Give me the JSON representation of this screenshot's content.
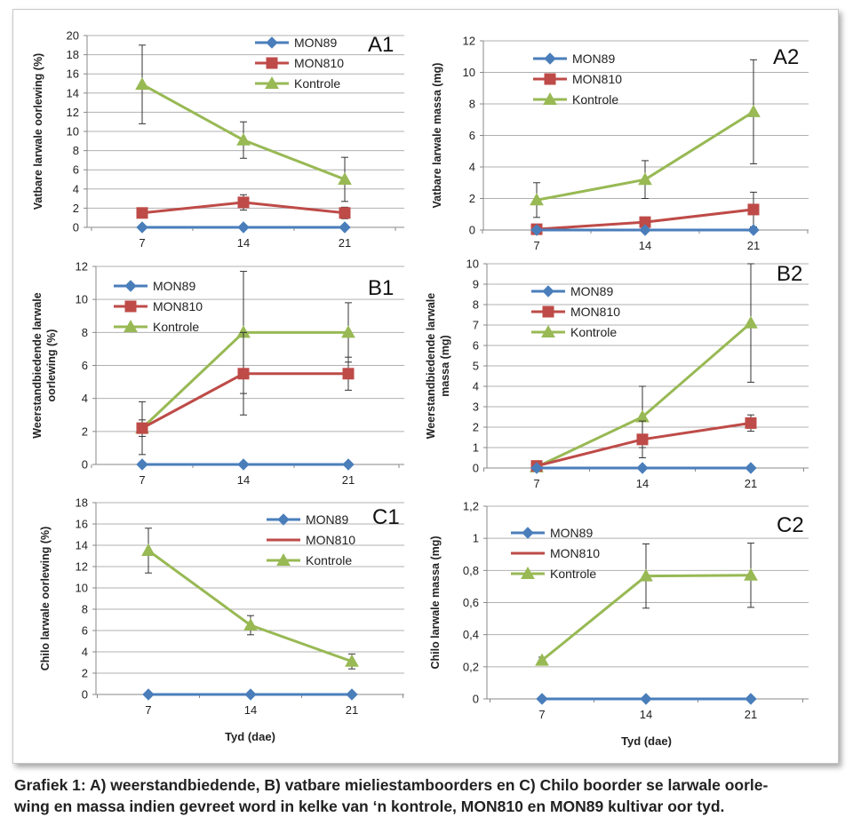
{
  "caption": {
    "line1": "Grafiek 1: A) weerstandbiedende, B) vatbare mieliestamboorders en C) Chilo boorder se larwale oorle-",
    "line2": "wing en massa indien gevreet word in kelke van ‘n kontrole, MON810 en MON89 kultivar oor tyd."
  },
  "colors": {
    "MON89": "#4a7ebb",
    "MON810": "#be4b48",
    "Kontrole": "#98b954",
    "grid": "#b0b0b0",
    "axis": "#888888"
  },
  "chart_data": [
    {
      "id": "A1",
      "type": "line",
      "panel_label": "A1",
      "ylabel": "Vatbare larwale oorlewing (%)",
      "xlabel": "",
      "categories": [
        "7",
        "14",
        "21"
      ],
      "ylim": [
        0,
        20
      ],
      "ytick_step": 2,
      "yticks": [
        "0",
        "2",
        "4",
        "6",
        "8",
        "10",
        "12",
        "14",
        "16",
        "18",
        "20"
      ],
      "series": [
        {
          "name": "MON89",
          "marker": "diamond",
          "values": [
            0,
            0,
            0
          ],
          "err": [
            0,
            0,
            0
          ]
        },
        {
          "name": "MON810",
          "marker": "square",
          "values": [
            1.5,
            2.6,
            1.5
          ],
          "err": [
            0.5,
            0.8,
            0.6
          ]
        },
        {
          "name": "Kontrole",
          "marker": "triangle",
          "values": [
            14.9,
            9.1,
            5.0
          ],
          "err": [
            4.1,
            1.9,
            2.3
          ]
        }
      ]
    },
    {
      "id": "A2",
      "type": "line",
      "panel_label": "A2",
      "ylabel": "Vatbare larwale massa (mg)",
      "xlabel": "",
      "categories": [
        "7",
        "14",
        "21"
      ],
      "ylim": [
        0,
        12
      ],
      "ytick_step": 2,
      "yticks": [
        "0",
        "2",
        "4",
        "6",
        "8",
        "10",
        "12"
      ],
      "series": [
        {
          "name": "MON89",
          "marker": "diamond",
          "values": [
            0,
            0,
            0
          ],
          "err": [
            0,
            0,
            0
          ]
        },
        {
          "name": "MON810",
          "marker": "square",
          "values": [
            0.05,
            0.5,
            1.3
          ],
          "err": [
            0,
            0,
            1.1
          ]
        },
        {
          "name": "Kontrole",
          "marker": "triangle",
          "values": [
            1.9,
            3.2,
            7.5
          ],
          "err": [
            1.1,
            1.2,
            3.3
          ]
        }
      ]
    },
    {
      "id": "B1",
      "type": "line",
      "panel_label": "B1",
      "ylabel": "Weerstandbiedende larwale oorlewing (%)",
      "xlabel": "",
      "categories": [
        "7",
        "14",
        "21"
      ],
      "ylim": [
        0,
        12
      ],
      "ytick_step": 2,
      "yticks": [
        "0",
        "2",
        "4",
        "6",
        "8",
        "10",
        "12"
      ],
      "series": [
        {
          "name": "MON89",
          "marker": "diamond",
          "values": [
            0,
            0,
            0
          ],
          "err": [
            0,
            0,
            0
          ]
        },
        {
          "name": "MON810",
          "marker": "square",
          "values": [
            2.2,
            5.5,
            5.5
          ],
          "err": [
            0.5,
            2.5,
            1.0
          ]
        },
        {
          "name": "Kontrole",
          "marker": "triangle",
          "values": [
            2.2,
            8.0,
            8.0
          ],
          "err": [
            1.6,
            3.7,
            1.8
          ]
        }
      ]
    },
    {
      "id": "B2",
      "type": "line",
      "panel_label": "B2",
      "ylabel": "Weerstandbiedende larwale massa (mg)",
      "xlabel": "",
      "categories": [
        "7",
        "14",
        "21"
      ],
      "ylim": [
        0,
        10
      ],
      "ytick_step": 1,
      "yticks": [
        "0",
        "1",
        "2",
        "3",
        "4",
        "5",
        "6",
        "7",
        "8",
        "9",
        "10"
      ],
      "series": [
        {
          "name": "MON89",
          "marker": "diamond",
          "values": [
            0,
            0,
            0
          ],
          "err": [
            0,
            0,
            0
          ]
        },
        {
          "name": "MON810",
          "marker": "square",
          "values": [
            0.1,
            1.4,
            2.2
          ],
          "err": [
            0,
            0.9,
            0.4
          ]
        },
        {
          "name": "Kontrole",
          "marker": "triangle",
          "values": [
            0.05,
            2.5,
            7.1
          ],
          "err": [
            0,
            1.5,
            2.9
          ]
        }
      ]
    },
    {
      "id": "C1",
      "type": "line",
      "panel_label": "C1",
      "ylabel": "Chilo larwale oorlewing (%)",
      "xlabel": "Tyd (dae)",
      "categories": [
        "7",
        "14",
        "21"
      ],
      "ylim": [
        0,
        18
      ],
      "ytick_step": 2,
      "yticks": [
        "0",
        "2",
        "4",
        "6",
        "8",
        "10",
        "12",
        "14",
        "16",
        "18"
      ],
      "series": [
        {
          "name": "MON89",
          "marker": "diamond",
          "values": [
            0,
            0,
            0
          ],
          "err": [
            0,
            0,
            0
          ]
        },
        {
          "name": "MON810",
          "marker": "none",
          "values": [
            0,
            0,
            0
          ],
          "err": [
            0,
            0,
            0
          ]
        },
        {
          "name": "Kontrole",
          "marker": "triangle",
          "values": [
            13.5,
            6.5,
            3.1
          ],
          "err": [
            2.1,
            0.9,
            0.7
          ]
        }
      ]
    },
    {
      "id": "C2",
      "type": "line",
      "panel_label": "C2",
      "ylabel": "Chilo larwale massa (mg)",
      "xlabel": "Tyd (dae)",
      "categories": [
        "7",
        "14",
        "21"
      ],
      "ylim": [
        0,
        1.2
      ],
      "ytick_step": 0.2,
      "yticks": [
        "0",
        "0,2",
        "0,4",
        "0,6",
        "0,8",
        "1",
        "1,2"
      ],
      "series": [
        {
          "name": "MON89",
          "marker": "diamond",
          "values": [
            0,
            0,
            0
          ],
          "err": [
            0,
            0,
            0
          ]
        },
        {
          "name": "MON810",
          "marker": "none",
          "values": [
            0,
            0,
            0
          ],
          "err": [
            0,
            0,
            0
          ]
        },
        {
          "name": "Kontrole",
          "marker": "triangle",
          "values": [
            0.24,
            0.765,
            0.77
          ],
          "err": [
            0.02,
            0.2,
            0.2
          ]
        }
      ]
    }
  ]
}
